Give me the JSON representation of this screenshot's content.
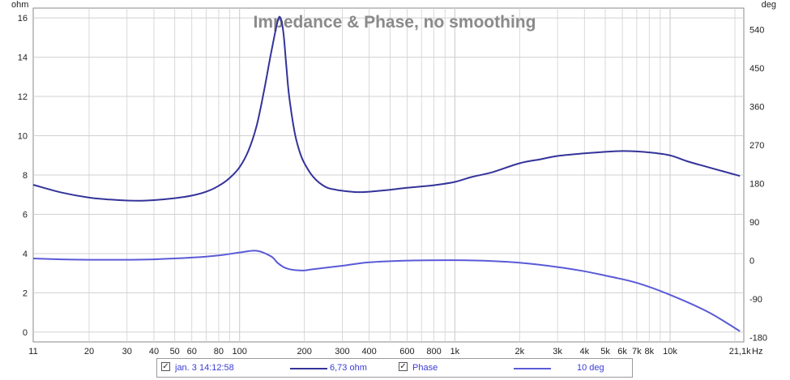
{
  "chart_data": {
    "type": "line",
    "title": "Impedance & Phase, no smoothing",
    "x_scale": "log",
    "xlim": [
      11,
      22000
    ],
    "x_unit": "Hz",
    "x_ticks": [
      {
        "v": 11,
        "label": "11"
      },
      {
        "v": 20,
        "label": "20"
      },
      {
        "v": 30,
        "label": "30"
      },
      {
        "v": 40,
        "label": "40"
      },
      {
        "v": 50,
        "label": "50"
      },
      {
        "v": 60,
        "label": "60"
      },
      {
        "v": 80,
        "label": "80"
      },
      {
        "v": 100,
        "label": "100"
      },
      {
        "v": 200,
        "label": "200"
      },
      {
        "v": 300,
        "label": "300"
      },
      {
        "v": 400,
        "label": "400"
      },
      {
        "v": 600,
        "label": "600"
      },
      {
        "v": 800,
        "label": "800"
      },
      {
        "v": 1000,
        "label": "1k"
      },
      {
        "v": 2000,
        "label": "2k"
      },
      {
        "v": 3000,
        "label": "3k"
      },
      {
        "v": 4000,
        "label": "4k"
      },
      {
        "v": 5000,
        "label": "5k"
      },
      {
        "v": 6000,
        "label": "6k"
      },
      {
        "v": 7000,
        "label": "7k"
      },
      {
        "v": 8000,
        "label": "8k"
      },
      {
        "v": 10000,
        "label": "10k"
      },
      {
        "v": 21100,
        "label": "21,1k"
      }
    ],
    "y_left": {
      "unit": "ohm",
      "lim": [
        -0.5,
        16.5
      ],
      "ticks": [
        0,
        2,
        4,
        6,
        8,
        10,
        12,
        14,
        16
      ]
    },
    "y_right": {
      "unit": "deg",
      "lim": [
        -190,
        590
      ],
      "ticks": [
        -180,
        -90,
        0,
        90,
        180,
        270,
        360,
        450,
        540
      ]
    },
    "grid": true,
    "colors": {
      "impedance": "#33339a",
      "phase": "#5a5ad8",
      "grid": "#d0d0d0",
      "axis": "#8a8a8a"
    },
    "series": [
      {
        "name": "6,73 ohm",
        "axis": "left",
        "x": [
          11,
          15,
          20,
          25,
          30,
          35,
          40,
          50,
          60,
          70,
          80,
          90,
          100,
          110,
          120,
          130,
          140,
          150,
          155,
          160,
          165,
          170,
          180,
          190,
          200,
          220,
          250,
          280,
          300,
          350,
          400,
          450,
          500,
          600,
          700,
          800,
          1000,
          1200,
          1500,
          2000,
          2500,
          3000,
          4000,
          5000,
          6000,
          7000,
          8000,
          10000,
          12000,
          15000,
          21100
        ],
        "values": [
          7.5,
          7.1,
          6.85,
          6.75,
          6.7,
          6.69,
          6.72,
          6.82,
          6.95,
          7.15,
          7.45,
          7.85,
          8.4,
          9.25,
          10.5,
          12.3,
          14.2,
          15.8,
          16.0,
          15.2,
          13.5,
          12.0,
          10.2,
          9.2,
          8.6,
          7.9,
          7.4,
          7.25,
          7.2,
          7.13,
          7.15,
          7.2,
          7.25,
          7.35,
          7.42,
          7.48,
          7.65,
          7.9,
          8.15,
          8.6,
          8.8,
          8.97,
          9.1,
          9.18,
          9.22,
          9.2,
          9.15,
          9.0,
          8.7,
          8.4,
          7.95
        ]
      },
      {
        "name": "Phase",
        "value_label": "10 deg",
        "axis": "right",
        "x": [
          11,
          15,
          20,
          30,
          40,
          60,
          80,
          100,
          120,
          140,
          150,
          160,
          170,
          180,
          200,
          220,
          300,
          400,
          600,
          1000,
          1500,
          2000,
          3000,
          4000,
          5000,
          7000,
          10000,
          15000,
          21100
        ],
        "values": [
          5,
          3,
          2,
          2,
          3,
          7,
          12,
          19,
          23,
          10,
          -5,
          -15,
          -20,
          -22,
          -23,
          -20,
          -12,
          -4,
          0,
          1,
          -1,
          -5,
          -15,
          -25,
          -35,
          -52,
          -80,
          -120,
          -165
        ]
      }
    ]
  },
  "legend": {
    "row1_label": "jan. 3 14:12:58",
    "row1_value": "6,73 ohm",
    "row2_label": "Phase",
    "row2_value": "10 deg",
    "check_mark": "✓"
  }
}
